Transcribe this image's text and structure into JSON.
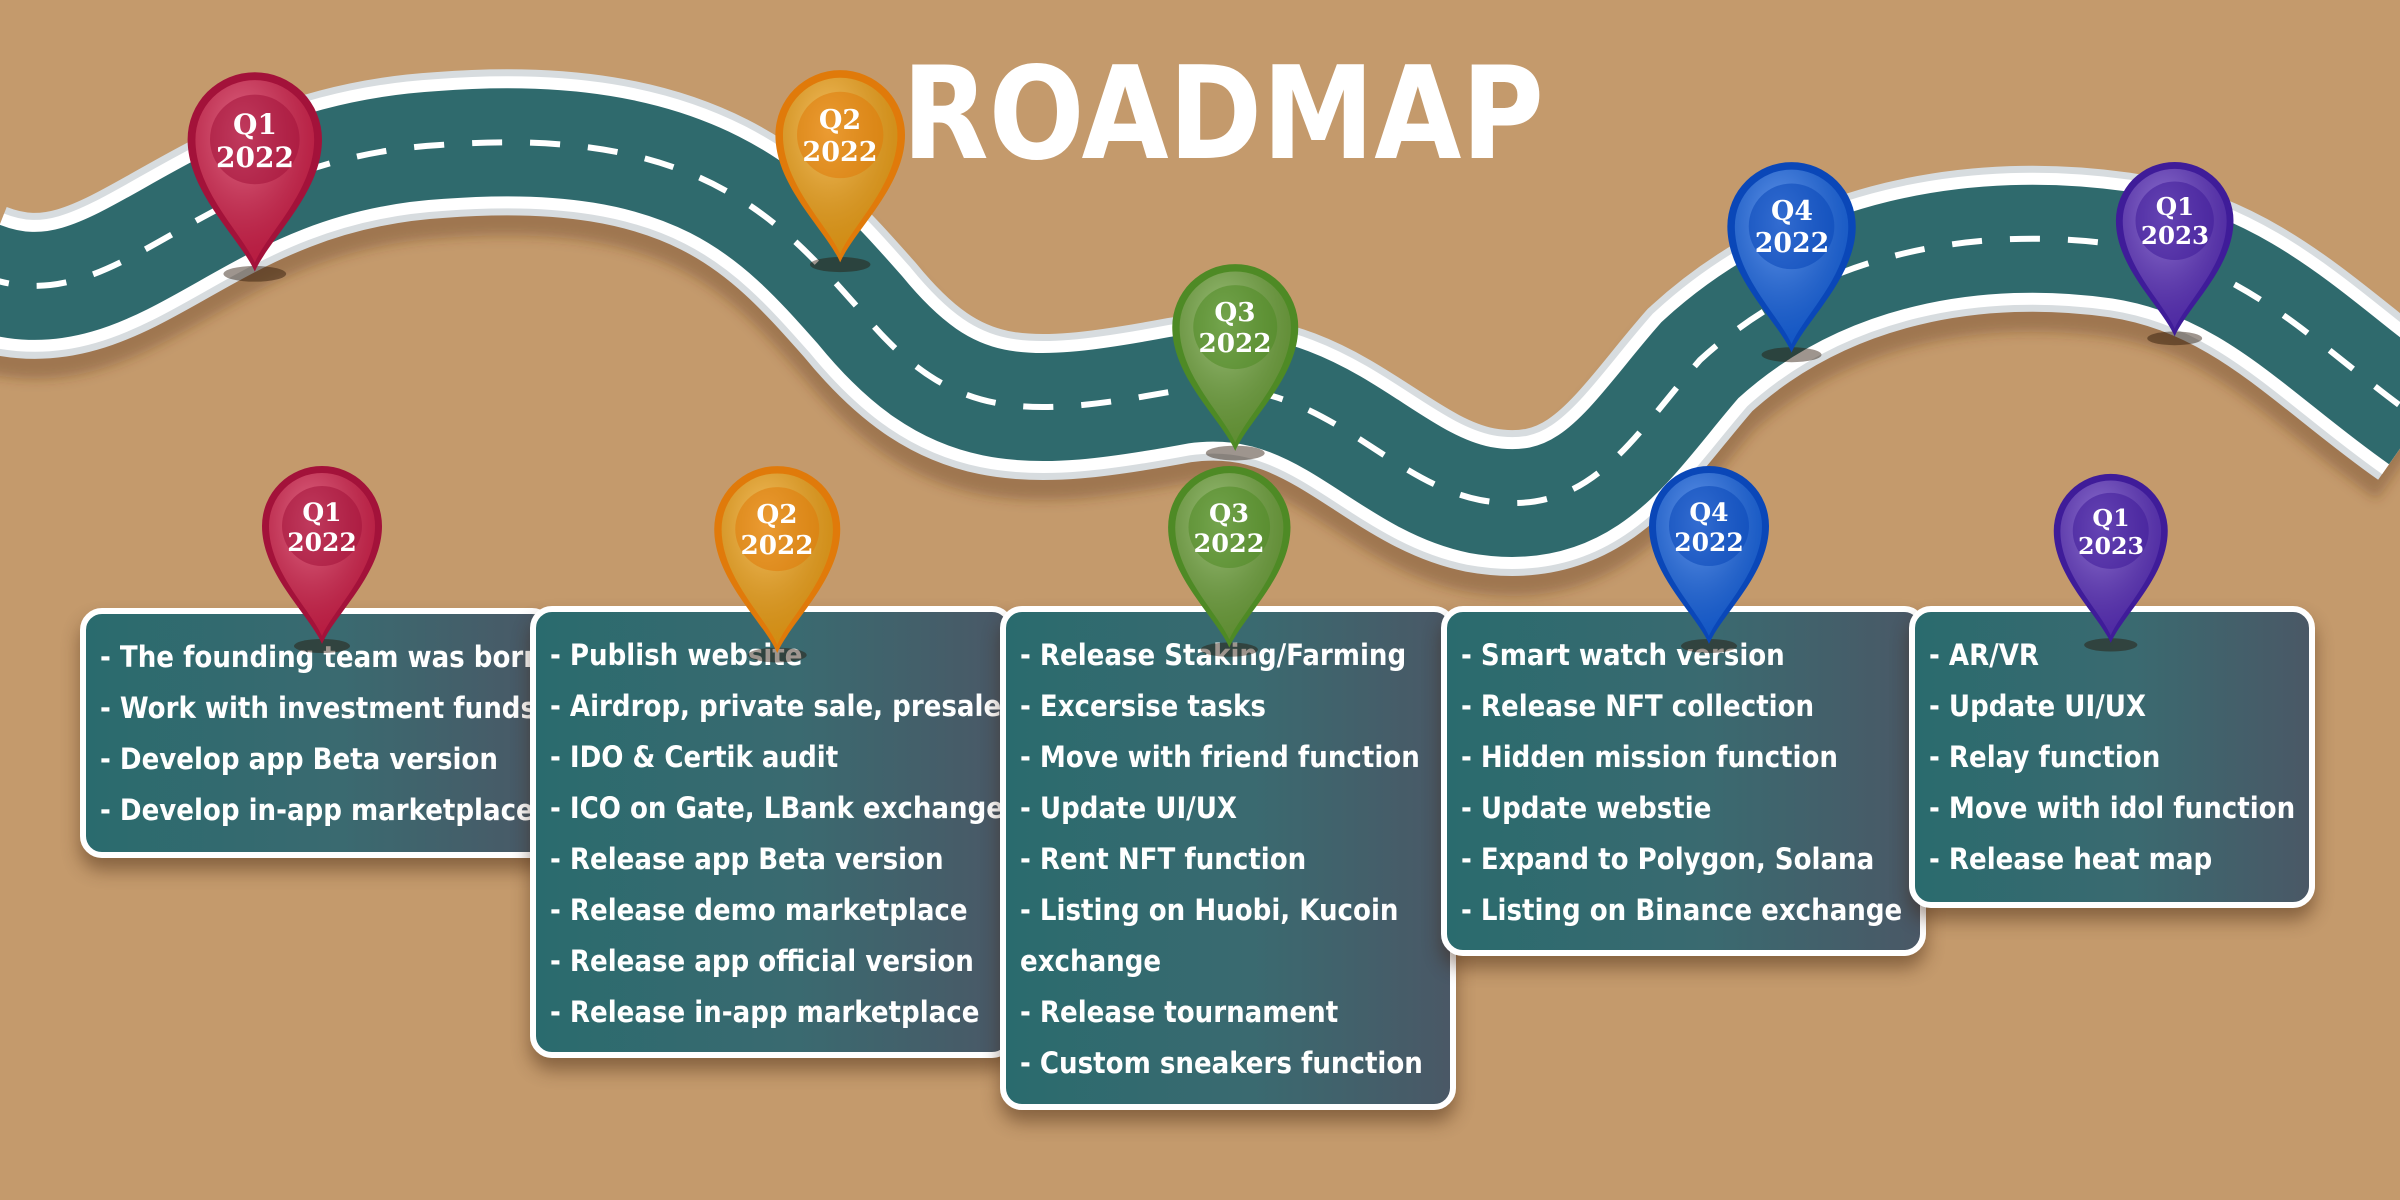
{
  "title": "ROADMAP",
  "road_pins": [
    {
      "quarter": "Q1",
      "year": "2022",
      "color": "#d81e4a",
      "dark": "#a3123a"
    },
    {
      "quarter": "Q2",
      "year": "2022",
      "color": "#f7a514",
      "dark": "#e07a0a"
    },
    {
      "quarter": "Q3",
      "year": "2022",
      "color": "#6fa53a",
      "dark": "#4e8a25"
    },
    {
      "quarter": "Q4",
      "year": "2022",
      "color": "#1565e8",
      "dark": "#0a47b8"
    },
    {
      "quarter": "Q1",
      "year": "2023",
      "color": "#5b2fc0",
      "dark": "#3f1c99"
    }
  ],
  "phases": [
    {
      "quarter": "Q1",
      "year": "2022",
      "color": "#d81e4a",
      "dark": "#a3123a",
      "items": [
        "- The founding team was born",
        "- Work with investment funds",
        "- Develop app Beta version",
        "- Develop in-app marketplace"
      ]
    },
    {
      "quarter": "Q2",
      "year": "2022",
      "color": "#f7a514",
      "dark": "#e07a0a",
      "items": [
        "- Publish website",
        "- Airdrop, private sale, presale",
        "- IDO & Certik audit",
        "- ICO on Gate, LBank exchange",
        "- Release app Beta version",
        "- Release demo marketplace",
        "- Release app official version",
        "- Release in-app marketplace"
      ]
    },
    {
      "quarter": "Q3",
      "year": "2022",
      "color": "#6fa53a",
      "dark": "#4e8a25",
      "items": [
        "- Release Staking/Farming",
        "- Excersise tasks",
        "- Move with friend function",
        "- Update UI/UX",
        "- Rent NFT function",
        "- Listing on Huobi, Kucoin exchange",
        "- Release tournament",
        "- Custom sneakers function"
      ]
    },
    {
      "quarter": "Q4",
      "year": "2022",
      "color": "#1565e8",
      "dark": "#0a47b8",
      "items": [
        "- Smart watch version",
        "- Release NFT collection",
        "- Hidden mission function",
        "- Update webstie",
        "- Expand to Polygon, Solana",
        "- Listing on Binance exchange"
      ]
    },
    {
      "quarter": "Q1",
      "year": "2023",
      "color": "#5b2fc0",
      "dark": "#3f1c99",
      "items": [
        "- AR/VR",
        "- Update UI/UX",
        "- Relay function",
        "- Move with idol function",
        "- Release heat map"
      ]
    }
  ]
}
